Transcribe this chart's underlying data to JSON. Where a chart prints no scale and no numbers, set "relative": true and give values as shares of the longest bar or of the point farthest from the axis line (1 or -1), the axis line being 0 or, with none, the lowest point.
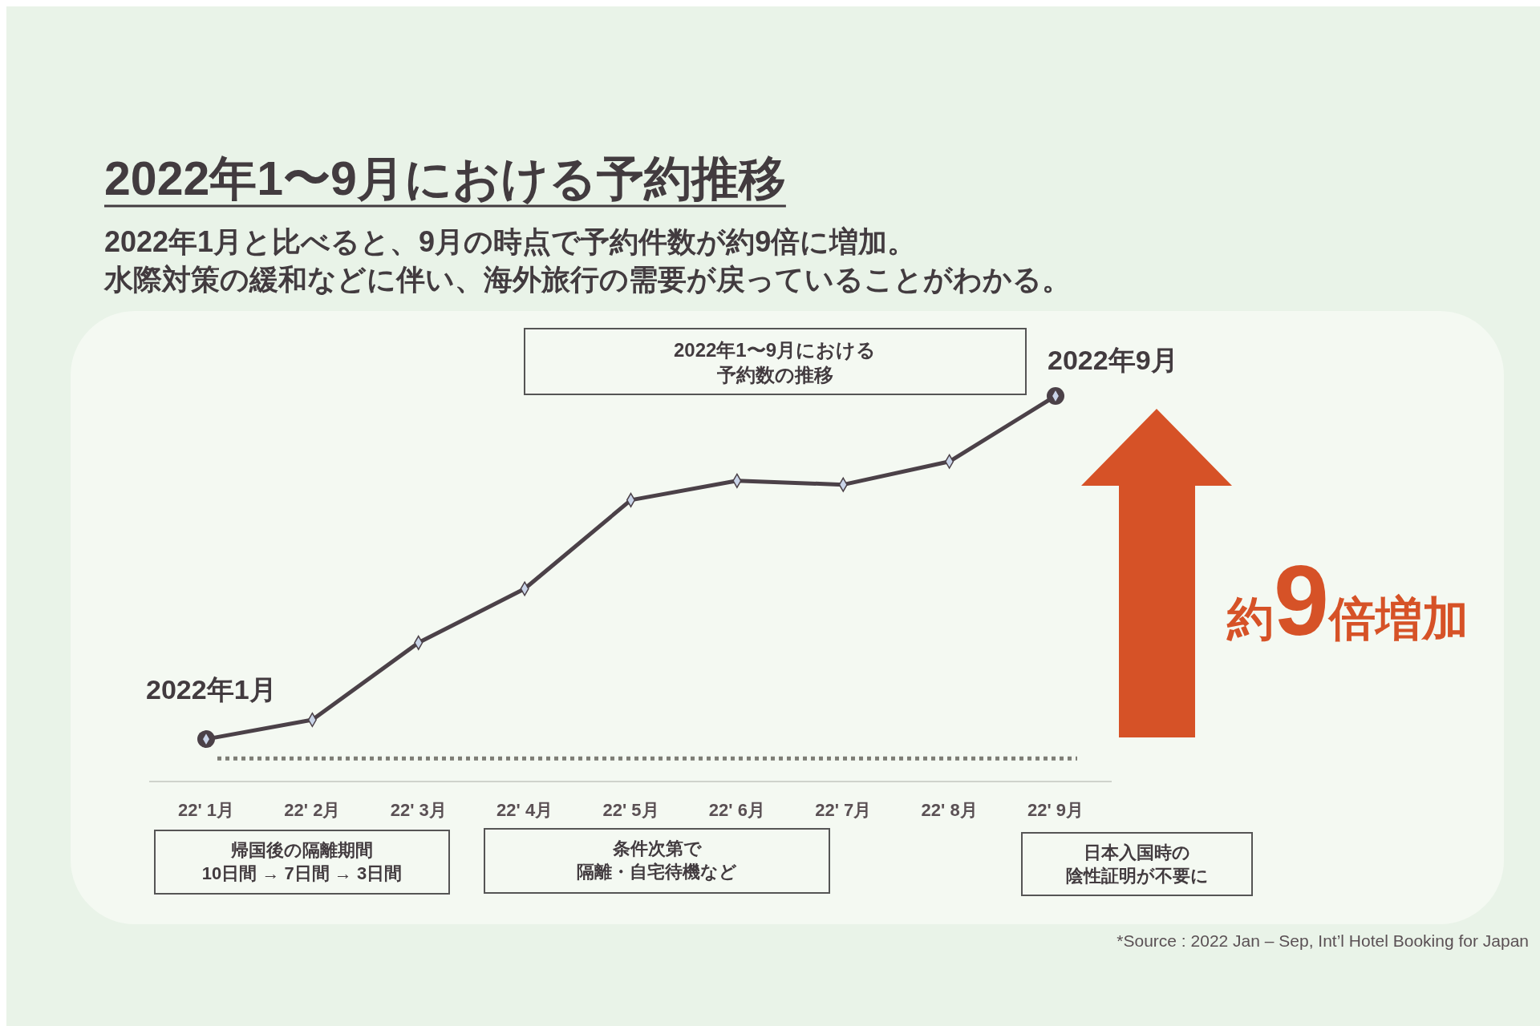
{
  "chart_data": {
    "type": "line",
    "title": "2022年1〜9月における予約推移",
    "subtitle": "2022年1月と比べると、9月の時点で予約件数が約9倍に増加。水際対策の緩和などに伴い、海外旅行の需要が戻っていることがわかる。",
    "categories": [
      "22' 1月",
      "22' 2月",
      "22' 3月",
      "22' 4月",
      "22' 5月",
      "22' 6月",
      "22' 7月",
      "22' 8月",
      "22' 9月"
    ],
    "series": [
      {
        "color": "#4b4148",
        "values": [
          0.11,
          0.16,
          0.36,
          0.5,
          0.73,
          0.78,
          0.77,
          0.83,
          1
        ]
      }
    ],
    "relative": true,
    "marker": "diamond",
    "line_style": "solid",
    "ref_lines": [
      {
        "axis": "y",
        "value": 0.06,
        "line_style": "dotted",
        "color": "#7d7d75"
      }
    ],
    "annotations": [
      {
        "text": "2022年1月",
        "x": "22' 1月",
        "y": 0.11
      },
      {
        "text": "2022年9月",
        "x": "22' 9月",
        "y": 1
      },
      "2022年1〜9月における予約数の推移",
      "約9倍増加",
      "帰国後の隔離期間10日間 → 7日間 → 3日間",
      "条件次第で隔離・自宅待機など",
      "日本入国時の陰性証明が不要に",
      "*Source : 2022 Jan – Sep, Int’l Hotel Booking for Japan"
    ]
  }
}
